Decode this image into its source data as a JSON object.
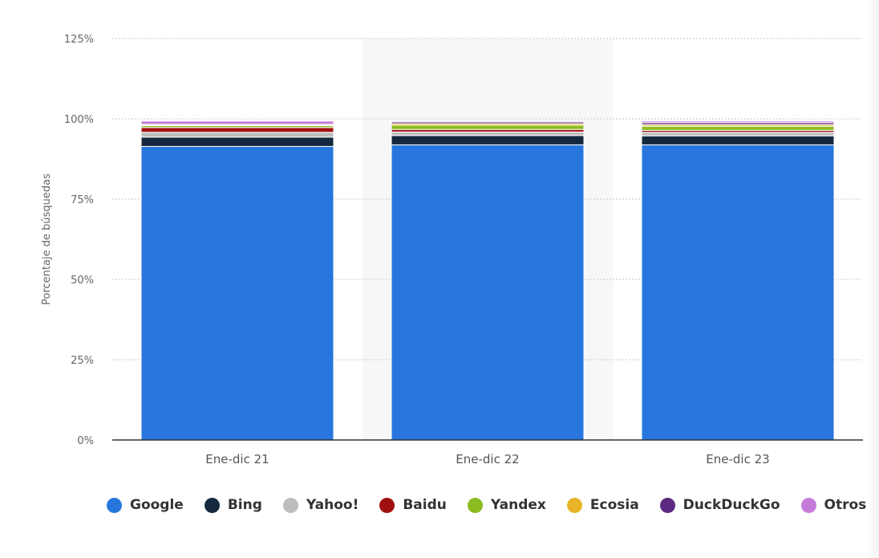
{
  "chart_data": {
    "type": "bar",
    "stacked": true,
    "title": "",
    "xlabel": "",
    "ylabel": "Porcentaje de búsquedas",
    "ylim": [
      0,
      125
    ],
    "yticks": [
      0,
      25,
      50,
      75,
      100,
      125
    ],
    "ytick_labels": [
      "0%",
      "25%",
      "50%",
      "75%",
      "100%",
      "125%"
    ],
    "categories": [
      "Ene-dic 21",
      "Ene-dic 22",
      "Ene-dic 23"
    ],
    "highlighted_category": "Ene-dic 22",
    "grid": true,
    "legend_position": "bottom",
    "series": [
      {
        "name": "Google",
        "color": "#2876dd",
        "values": [
          91.4,
          91.9,
          91.9
        ]
      },
      {
        "name": "Bing",
        "color": "#14293d",
        "values": [
          2.9,
          2.9,
          2.8
        ]
      },
      {
        "name": "Yahoo!",
        "color": "#bdbdbd",
        "values": [
          1.5,
          1.1,
          1.1
        ]
      },
      {
        "name": "Baidu",
        "color": "#a01010",
        "values": [
          1.5,
          0.8,
          0.6
        ]
      },
      {
        "name": "Yandex",
        "color": "#8bbc21",
        "values": [
          0.6,
          1.3,
          1.3
        ]
      },
      {
        "name": "Ecosia",
        "color": "#e8b528",
        "values": [
          0.1,
          0.5,
          0.5
        ]
      },
      {
        "name": "DuckDuckGo",
        "color": "#5c2a80",
        "values": [
          0.3,
          0.5,
          0.6
        ]
      },
      {
        "name": "Otros",
        "color": "#c67ada",
        "values": [
          1.0,
          0.3,
          0.5
        ]
      }
    ]
  }
}
